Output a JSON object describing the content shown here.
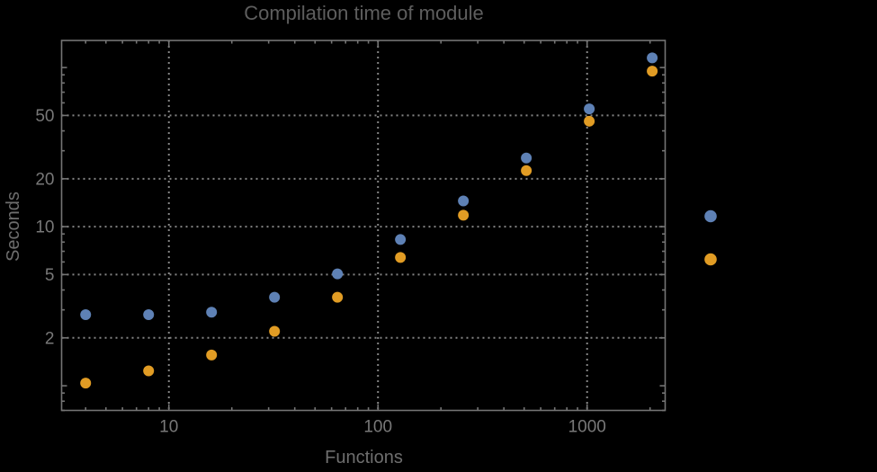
{
  "page": {
    "background": "#000000"
  },
  "chart_data": {
    "type": "scatter",
    "title": "Compilation time of module",
    "xlabel": "Functions",
    "ylabel": "Seconds",
    "x_scale": "log",
    "y_scale": "log",
    "x_range": [
      3.07,
      2362
    ],
    "y_range": [
      0.7,
      148
    ],
    "x_ticks_labeled": [
      "10",
      "100",
      "1000"
    ],
    "y_ticks_labeled": [
      "2",
      "5",
      "10",
      "20",
      "50"
    ],
    "y_ticks_unlabeled_major": [
      1,
      100
    ],
    "grid": "dotted gray gridlines at labeled ticks only",
    "legend_position": "right of plot, markers only (no visible label text)",
    "x": [
      4,
      8,
      16,
      32,
      64,
      128,
      256,
      512,
      1024,
      2048
    ],
    "series": [
      {
        "name": "blue-points",
        "color": "#5E81B5",
        "values": [
          2.8,
          2.8,
          2.9,
          3.6,
          5.05,
          8.3,
          14.5,
          27,
          55,
          115
        ]
      },
      {
        "name": "orange-points",
        "color": "#E19C24",
        "values": [
          1.04,
          1.24,
          1.56,
          2.2,
          3.6,
          6.4,
          11.8,
          22.5,
          46,
          95
        ]
      }
    ],
    "legend": {
      "labels_visible": false,
      "markers": [
        {
          "series": "blue-points",
          "color": "#5E81B5"
        },
        {
          "series": "orange-points",
          "color": "#E19C24"
        }
      ]
    }
  },
  "colors": {
    "background": "#000000",
    "frame": "#747474",
    "gridline": "#848484",
    "tick_label": "#787878",
    "title": "#5e5e5e",
    "axis_label": "#6e6e6e"
  }
}
